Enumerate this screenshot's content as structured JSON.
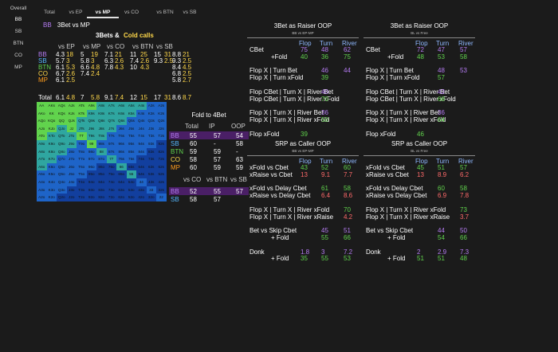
{
  "sidebar": {
    "title": "Overall",
    "items": [
      "BB",
      "SB",
      "BTN",
      "CO",
      "MP"
    ],
    "active": "BB"
  },
  "tabs": {
    "items": [
      "Total",
      "vs EP",
      "vs MP",
      "vs CO",
      "vs BTN",
      "vs SB"
    ],
    "active": "vs MP"
  },
  "heading": {
    "position": "BB",
    "matchup": "3Bet vs MP"
  },
  "three_bets": {
    "title_left": "3Bets &",
    "title_right": "Cold calls",
    "col_headers": [
      "vs EP",
      "vs MP",
      "vs CO",
      "vs BTN",
      "vs SB"
    ],
    "rows": [
      {
        "pos": "BB",
        "color": "#b57cf3",
        "cells": [
          [
            "4.3",
            "18"
          ],
          [
            "5",
            "19"
          ],
          [
            "7.1",
            "21"
          ],
          [
            "11",
            "25"
          ],
          [
            "15",
            "31"
          ]
        ],
        "tot": [
          "8.8",
          "21"
        ]
      },
      {
        "pos": "SB",
        "color": "#55b8ff",
        "cells": [
          [
            "5.7",
            "3"
          ],
          [
            "5.8",
            "3"
          ],
          [
            "6.3",
            "2.6"
          ],
          [
            "7.4",
            "2.6"
          ],
          [
            "9.3",
            "2.5"
          ]
        ],
        "tot": [
          "9.3",
          "2.5"
        ]
      },
      {
        "pos": "BTN",
        "color": "#61d34d",
        "cells": [
          [
            "6.1",
            "5.3"
          ],
          [
            "6.6",
            "4.8"
          ],
          [
            "7.8",
            "4.3"
          ],
          [
            "10",
            "4.3"
          ],
          [
            "",
            ""
          ]
        ],
        "tot": [
          "8.4",
          "4.5"
        ]
      },
      {
        "pos": "CO",
        "color": "#ffd84a",
        "cells": [
          [
            "6.7",
            "2.6"
          ],
          [
            "7.4",
            "2.4"
          ],
          [
            "",
            ""
          ],
          [
            "",
            ""
          ],
          [
            "",
            ""
          ]
        ],
        "tot": [
          "6.8",
          "2.5"
        ]
      },
      {
        "pos": "MP",
        "color": "#ff9d1c",
        "cells": [
          [
            "6.1",
            "2.5"
          ],
          [
            "",
            ""
          ],
          [
            "",
            ""
          ],
          [
            "",
            ""
          ],
          [
            "",
            ""
          ]
        ],
        "tot": [
          "5.8",
          "2.7"
        ]
      }
    ],
    "total_label": "Total",
    "total_cells": [
      [
        "6.1",
        "4.8"
      ],
      [
        "7",
        "5.8"
      ],
      [
        "9.1",
        "7.4"
      ],
      [
        "12",
        "15"
      ],
      [
        "17",
        "31"
      ]
    ],
    "total_tot": [
      "8.6",
      "8.7"
    ]
  },
  "hand_grid": {
    "ranks": [
      "A",
      "K",
      "Q",
      "J",
      "T",
      "9",
      "8",
      "7",
      "6",
      "5",
      "4",
      "3",
      "2"
    ],
    "colors": {
      "high": "#61d34d",
      "mid": "#2fa6a0",
      "low": "#1e64c8",
      "deep": "#123f9e",
      "none": "#1b1b1b"
    }
  },
  "fold_to_4bet": {
    "title": "Fold to 4Bet",
    "headers": [
      "Total",
      "IP",
      "OOP"
    ],
    "rows": [
      {
        "pos": "BB",
        "color": "#b57cf3",
        "vals": [
          "55",
          "57",
          "54"
        ],
        "hl": true
      },
      {
        "pos": "SB",
        "color": "#55b8ff",
        "vals": [
          "60",
          "-",
          "58"
        ]
      },
      {
        "pos": "BTN",
        "color": "#61d34d",
        "vals": [
          "59",
          "59",
          "-"
        ]
      },
      {
        "pos": "CO",
        "color": "#ffd84a",
        "vals": [
          "58",
          "57",
          "63"
        ]
      },
      {
        "pos": "MP",
        "color": "#ff9d1c",
        "vals": [
          "60",
          "59",
          "59"
        ]
      }
    ],
    "headers2": [
      "vs CO",
      "vs BTN",
      "vs SB"
    ],
    "rows2": [
      {
        "pos": "BB",
        "color": "#b57cf3",
        "vals": [
          "52",
          "55",
          "57"
        ],
        "hl": true
      },
      {
        "pos": "SB",
        "color": "#55b8ff",
        "vals": [
          "58",
          "57",
          ""
        ]
      }
    ]
  },
  "panels": [
    {
      "title": "3Bet as Raiser OOP",
      "sub": "BB vs EP-MP",
      "cols": [
        "Flop",
        "Turn",
        "River"
      ],
      "rows": [
        {
          "label": "CBet",
          "vals": [
            "75",
            "48",
            "62"
          ],
          "colors": [
            "#b57cf3",
            "#b57cf3",
            "#b57cf3"
          ]
        },
        {
          "label": "+Fold",
          "indent": true,
          "vals": [
            "40",
            "36",
            "75"
          ],
          "colors": [
            "#61d34d",
            "#61d34d",
            "#61d34d"
          ]
        },
        {
          "label": "",
          "vals": [
            "",
            "",
            ""
          ]
        },
        {
          "label": "Flop X | Turn Bet",
          "vals": [
            "",
            "46",
            "44"
          ],
          "colors": [
            "",
            "#b57cf3",
            "#b57cf3"
          ]
        },
        {
          "label": "Flop X | Turn xFold",
          "vals": [
            "",
            "39",
            ""
          ],
          "colors": [
            "",
            "#61d34d",
            ""
          ]
        },
        {
          "label": "",
          "vals": [
            "",
            "",
            ""
          ]
        },
        {
          "label": "Flop CBet | Turn X | River Bet",
          "vals": [
            "",
            "40",
            ""
          ],
          "colors": [
            "",
            "#b57cf3",
            ""
          ]
        },
        {
          "label": "Flop CBet | Turn X | River xFold",
          "vals": [
            "",
            "70",
            ""
          ],
          "colors": [
            "",
            "#61d34d",
            ""
          ]
        },
        {
          "label": "",
          "vals": [
            "",
            "",
            ""
          ]
        },
        {
          "label": "Flop X | Turn X | River Bet",
          "vals": [
            "",
            "36",
            ""
          ],
          "colors": [
            "",
            "#b57cf3",
            ""
          ]
        },
        {
          "label": "Flop X | Turn X | River xFold",
          "vals": [
            "",
            "50",
            ""
          ],
          "colors": [
            "",
            "#61d34d",
            ""
          ]
        },
        {
          "label": "",
          "vals": [
            "",
            "",
            ""
          ]
        },
        {
          "label": "Flop xFold",
          "vals": [
            "39",
            "",
            ""
          ],
          "colors": [
            "#61d34d",
            "",
            ""
          ]
        }
      ]
    },
    {
      "title": "3Bet as Raiser OOP",
      "sub": "BL vs Free",
      "cols": [
        "Flop",
        "Turn",
        "River"
      ],
      "rows": [
        {
          "label": "CBet",
          "vals": [
            "72",
            "47",
            "57"
          ],
          "colors": [
            "#b57cf3",
            "#b57cf3",
            "#b57cf3"
          ]
        },
        {
          "label": "+Fold",
          "indent": true,
          "vals": [
            "48",
            "53",
            "58"
          ],
          "colors": [
            "#61d34d",
            "#61d34d",
            "#61d34d"
          ]
        },
        {
          "label": "",
          "vals": [
            "",
            "",
            ""
          ]
        },
        {
          "label": "Flop X | Turn Bet",
          "vals": [
            "",
            "48",
            "53"
          ],
          "colors": [
            "",
            "#b57cf3",
            "#b57cf3"
          ]
        },
        {
          "label": "Flop X | Turn xFold",
          "vals": [
            "",
            "57",
            ""
          ],
          "colors": [
            "",
            "#61d34d",
            ""
          ]
        },
        {
          "label": "",
          "vals": [
            "",
            "",
            ""
          ]
        },
        {
          "label": "Flop CBet | Turn X | River Bet",
          "vals": [
            "",
            "42",
            ""
          ],
          "colors": [
            "",
            "#b57cf3",
            ""
          ]
        },
        {
          "label": "Flop CBet | Turn X | River xFold",
          "vals": [
            "",
            "68",
            ""
          ],
          "colors": [
            "",
            "#61d34d",
            ""
          ]
        },
        {
          "label": "",
          "vals": [
            "",
            "",
            ""
          ]
        },
        {
          "label": "Flop X | Turn X | River Bet",
          "vals": [
            "",
            "36",
            ""
          ],
          "colors": [
            "",
            "#b57cf3",
            ""
          ]
        },
        {
          "label": "Flop X | Turn X | River xFold",
          "vals": [
            "",
            "64",
            ""
          ],
          "colors": [
            "",
            "#61d34d",
            ""
          ]
        },
        {
          "label": "",
          "vals": [
            "",
            "",
            ""
          ]
        },
        {
          "label": "Flop xFold",
          "vals": [
            "46",
            "",
            ""
          ],
          "colors": [
            "#61d34d",
            "",
            ""
          ]
        }
      ]
    },
    {
      "title": "SRP as Caller OOP",
      "sub": "BB vs EP-MP",
      "cols": [
        "Flop",
        "Turn",
        "River"
      ],
      "rows": [
        {
          "label": "xFold vs Cbet",
          "vals": [
            "43",
            "52",
            "60"
          ],
          "colors": [
            "#61d34d",
            "#61d34d",
            "#61d34d"
          ]
        },
        {
          "label": "xRaise vs Cbet",
          "vals": [
            "13",
            "9.1",
            "7.7"
          ],
          "colors": [
            "#ff6a6a",
            "#ff6a6a",
            "#ff6a6a"
          ]
        },
        {
          "label": "",
          "vals": [
            "",
            "",
            ""
          ]
        },
        {
          "label": "xFold vs Delay Cbet",
          "vals": [
            "",
            "61",
            "58"
          ],
          "colors": [
            "",
            "#61d34d",
            "#61d34d"
          ]
        },
        {
          "label": "xRaise vs Delay Cbet",
          "vals": [
            "",
            "6.4",
            "8.6"
          ],
          "colors": [
            "",
            "#ff6a6a",
            "#ff6a6a"
          ]
        },
        {
          "label": "",
          "vals": [
            "",
            "",
            ""
          ]
        },
        {
          "label": "Flop X | Turn X | River xFold",
          "vals": [
            "",
            "",
            "70"
          ],
          "colors": [
            "",
            "",
            "#61d34d"
          ]
        },
        {
          "label": "Flop X | Turn X | River xRaise",
          "vals": [
            "",
            "",
            "4.2"
          ],
          "colors": [
            "",
            "",
            "#ff6a6a"
          ]
        },
        {
          "label": "",
          "vals": [
            "",
            "",
            ""
          ]
        },
        {
          "label": "Bet vs Skip Cbet",
          "vals": [
            "",
            "45",
            "51"
          ],
          "colors": [
            "",
            "#b57cf3",
            "#b57cf3"
          ]
        },
        {
          "label": "+ Fold",
          "indent": true,
          "vals": [
            "",
            "55",
            "66"
          ],
          "colors": [
            "",
            "#61d34d",
            "#61d34d"
          ]
        },
        {
          "label": "",
          "vals": [
            "",
            "",
            ""
          ]
        },
        {
          "label": "Donk",
          "vals": [
            "1.8",
            "3",
            "7.2"
          ],
          "colors": [
            "#b57cf3",
            "#b57cf3",
            "#b57cf3"
          ]
        },
        {
          "label": "+ Fold",
          "indent": true,
          "vals": [
            "35",
            "55",
            "53"
          ],
          "colors": [
            "#61d34d",
            "#61d34d",
            "#61d34d"
          ]
        }
      ]
    },
    {
      "title": "SRP as Caller OOP",
      "sub": "BL vs Free",
      "cols": [
        "Flop",
        "Turn",
        "River"
      ],
      "rows": [
        {
          "label": "xFold vs Cbet",
          "vals": [
            "45",
            "51",
            "57"
          ],
          "colors": [
            "#61d34d",
            "#61d34d",
            "#61d34d"
          ]
        },
        {
          "label": "xRaise vs Cbet",
          "vals": [
            "13",
            "8.9",
            "6.2"
          ],
          "colors": [
            "#ff6a6a",
            "#ff6a6a",
            "#ff6a6a"
          ]
        },
        {
          "label": "",
          "vals": [
            "",
            "",
            ""
          ]
        },
        {
          "label": "xFold vs Delay Cbet",
          "vals": [
            "",
            "60",
            "58"
          ],
          "colors": [
            "",
            "#61d34d",
            "#61d34d"
          ]
        },
        {
          "label": "xRaise vs Delay Cbet",
          "vals": [
            "",
            "6.9",
            "7.8"
          ],
          "colors": [
            "",
            "#ff6a6a",
            "#ff6a6a"
          ]
        },
        {
          "label": "",
          "vals": [
            "",
            "",
            ""
          ]
        },
        {
          "label": "Flop X | Turn X | River xFold",
          "vals": [
            "",
            "",
            "73"
          ],
          "colors": [
            "",
            "",
            "#61d34d"
          ]
        },
        {
          "label": "Flop X | Turn X | River xRaise",
          "vals": [
            "",
            "",
            "3.7"
          ],
          "colors": [
            "",
            "",
            "#ff6a6a"
          ]
        },
        {
          "label": "",
          "vals": [
            "",
            "",
            ""
          ]
        },
        {
          "label": "Bet vs Skip Cbet",
          "vals": [
            "",
            "44",
            "50"
          ],
          "colors": [
            "",
            "#b57cf3",
            "#b57cf3"
          ]
        },
        {
          "label": "+ Fold",
          "indent": true,
          "vals": [
            "",
            "54",
            "66"
          ],
          "colors": [
            "",
            "#61d34d",
            "#61d34d"
          ]
        },
        {
          "label": "",
          "vals": [
            "",
            "",
            ""
          ]
        },
        {
          "label": "Donk",
          "vals": [
            "2",
            "2.9",
            "7.3"
          ],
          "colors": [
            "#b57cf3",
            "#b57cf3",
            "#b57cf3"
          ]
        },
        {
          "label": "+ Fold",
          "indent": true,
          "vals": [
            "51",
            "51",
            "48"
          ],
          "colors": [
            "#61d34d",
            "#61d34d",
            "#61d34d"
          ]
        }
      ]
    }
  ]
}
